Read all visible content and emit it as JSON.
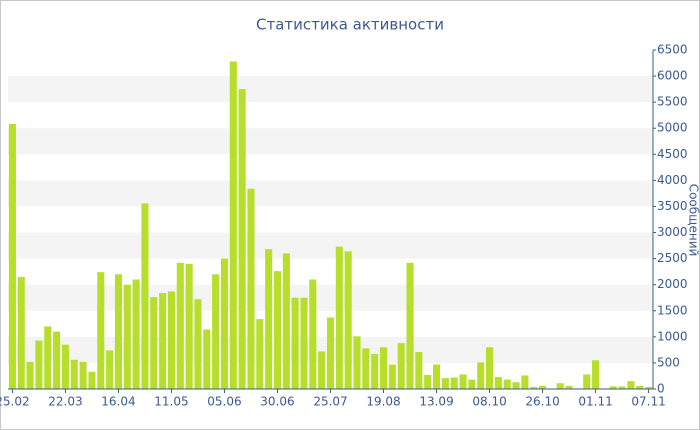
{
  "chart_data": {
    "type": "bar",
    "title": "Статистика активности",
    "y_label": "Сообщений",
    "categories": [
      "25.02",
      null,
      null,
      null,
      null,
      null,
      "22.03",
      null,
      null,
      null,
      null,
      null,
      "16.04",
      null,
      null,
      null,
      null,
      null,
      "11.05",
      null,
      null,
      null,
      null,
      null,
      "05.06",
      null,
      null,
      null,
      null,
      null,
      "30.06",
      null,
      null,
      null,
      null,
      null,
      "25.07",
      null,
      null,
      null,
      null,
      null,
      "19.08",
      null,
      null,
      null,
      null,
      null,
      "13.09",
      null,
      null,
      null,
      null,
      null,
      "08.10",
      null,
      null,
      null,
      null,
      null,
      "26.10",
      null,
      null,
      null,
      null,
      null,
      "01.11",
      null,
      null,
      null,
      null,
      null,
      "07.11"
    ],
    "values": [
      5080,
      2150,
      520,
      930,
      1200,
      1100,
      850,
      560,
      520,
      330,
      2240,
      740,
      2200,
      2000,
      2100,
      3560,
      1760,
      1840,
      1870,
      2420,
      2400,
      1720,
      1140,
      2200,
      2500,
      6280,
      5750,
      3840,
      1340,
      2680,
      2260,
      2600,
      1750,
      1750,
      2100,
      720,
      1370,
      2730,
      2640,
      1010,
      780,
      670,
      800,
      470,
      880,
      2420,
      710,
      270,
      470,
      210,
      220,
      280,
      180,
      510,
      800,
      230,
      180,
      130,
      260,
      40,
      60,
      0,
      110,
      60,
      0,
      280,
      550,
      0,
      50,
      50,
      150,
      60,
      40
    ],
    "color": "#b6de2b",
    "ylim": [
      0,
      6500
    ],
    "yticks": [
      0,
      500,
      1000,
      1500,
      2000,
      2500,
      3000,
      3500,
      4000,
      4500,
      5000,
      5500,
      6000,
      6500
    ],
    "grid": true,
    "grid_color": "#f4f4f4"
  }
}
